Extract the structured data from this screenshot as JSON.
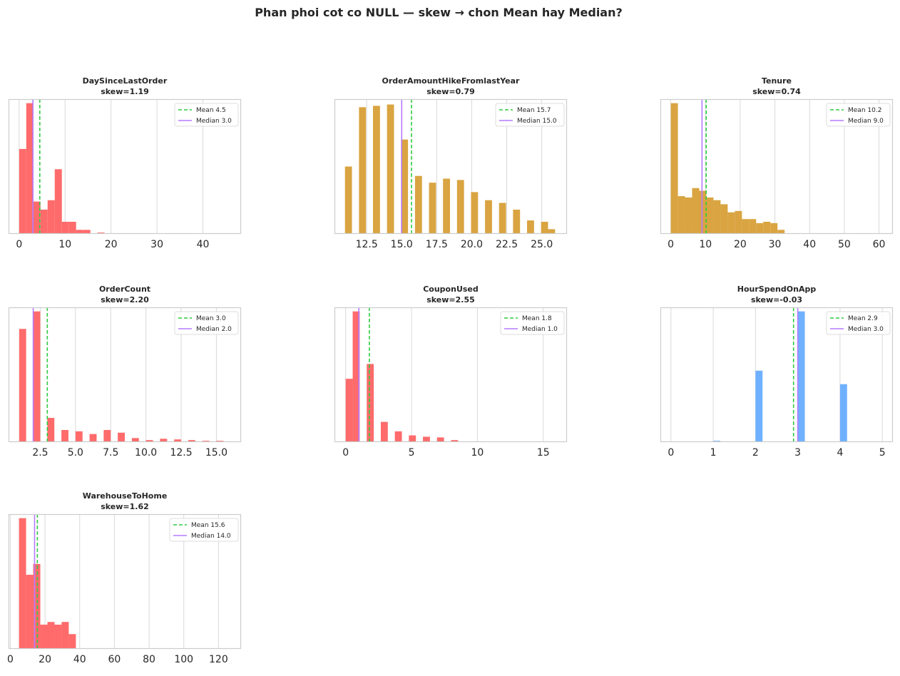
{
  "figure_title": "Phan phoi cot co NULL — skew → chon Mean hay Median?",
  "colors": {
    "red": "#ff6b6b",
    "gold": "#d9a441",
    "blue": "#6fb1ff",
    "mean": "#2ecc40",
    "median": "#b57bff",
    "grid": "#d9d9d9",
    "spine": "#cccccc"
  },
  "chart_data": [
    {
      "type": "histogram",
      "name": "DaySinceLastOrder",
      "title": "DaySinceLastOrder",
      "skew_label": "skew=1.19",
      "color": "red",
      "xlim": [
        -2.3,
        48.3
      ],
      "ymax": 1,
      "xticks": [
        0,
        10,
        20,
        30,
        40
      ],
      "xtick_labels": [
        "0",
        "10",
        "20",
        "30",
        "40"
      ],
      "bin_start": 0,
      "bin_width": 1.55,
      "heights": [
        0.63,
        0.97,
        0.24,
        0.18,
        0.25,
        0.48,
        0.09,
        0.09,
        0.03,
        0.03,
        0.005,
        0.01,
        0.003
      ],
      "mean": 4.5,
      "median": 3.0,
      "mean_label": "Mean 4.5",
      "median_label": "Median 3.0"
    },
    {
      "type": "histogram",
      "name": "OrderAmountHikeFromlastYear",
      "title": "OrderAmountHikeFromlastYear",
      "skew_label": "skew=0.79",
      "color": "gold",
      "xlim": [
        10.2,
        26.8
      ],
      "ymax": 1,
      "xticks": [
        12.5,
        15.0,
        17.5,
        20.0,
        22.5,
        25.0
      ],
      "xtick_labels": [
        "12.5",
        "15.0",
        "17.5",
        "20.0",
        "22.5",
        "25.0"
      ],
      "bin_start": 10.95,
      "bin_width": 0.5,
      "heights": [
        0.5,
        0,
        0.94,
        0,
        0.95,
        0,
        0.96,
        0,
        0.7,
        0,
        0.43,
        0,
        0.38,
        0,
        0.41,
        0,
        0.4,
        0,
        0.31,
        0,
        0.25,
        0,
        0.23,
        0,
        0.18,
        0,
        0.1,
        0,
        0.09,
        0.035
      ],
      "mean": 15.7,
      "median": 15.0,
      "mean_label": "Mean 15.7",
      "median_label": "Median 15.0"
    },
    {
      "type": "histogram",
      "name": "Tenure",
      "title": "Tenure",
      "skew_label": "skew=0.74",
      "color": "gold",
      "xlim": [
        -3,
        64
      ],
      "ymax": 1,
      "xticks": [
        0,
        10,
        20,
        30,
        40,
        50,
        60
      ],
      "xtick_labels": [
        "0",
        "10",
        "20",
        "30",
        "40",
        "50",
        "60"
      ],
      "bin_start": 0,
      "bin_width": 2.05,
      "heights": [
        0.97,
        0.28,
        0.27,
        0.34,
        0.32,
        0.27,
        0.25,
        0.22,
        0.16,
        0.17,
        0.11,
        0.11,
        0.08,
        0.09,
        0.08,
        0.03,
        0,
        0,
        0,
        0,
        0,
        0,
        0,
        0,
        0.005,
        0,
        0,
        0,
        0,
        0.005
      ],
      "mean": 10.2,
      "median": 9.0,
      "mean_label": "Mean 10.2",
      "median_label": "Median 9.0"
    },
    {
      "type": "histogram",
      "name": "OrderCount",
      "title": "OrderCount",
      "skew_label": "skew=2.20",
      "color": "red",
      "xlim": [
        0.25,
        16.75
      ],
      "ymax": 1,
      "xticks": [
        2.5,
        5.0,
        7.5,
        10.0,
        12.5,
        15.0
      ],
      "xtick_labels": [
        "2.5",
        "5.0",
        "7.5",
        "10.0",
        "12.5",
        "15.0"
      ],
      "bin_start": 1,
      "bin_width": 0.5,
      "heights": [
        0.84,
        0,
        0.97,
        0,
        0.18,
        0,
        0.09,
        0,
        0.08,
        0,
        0.06,
        0,
        0.09,
        0,
        0.07,
        0,
        0.03,
        0,
        0.015,
        0,
        0.025,
        0,
        0.02,
        0,
        0.015,
        0,
        0.01,
        0,
        0.01,
        0.005
      ],
      "mean": 3.0,
      "median": 2.0,
      "mean_label": "Mean 3.0",
      "median_label": "Median 2.0"
    },
    {
      "type": "histogram",
      "name": "CouponUsed",
      "title": "CouponUsed",
      "skew_label": "skew=2.55",
      "color": "red",
      "xlim": [
        -0.85,
        16.8
      ],
      "ymax": 1,
      "xticks": [
        0,
        5,
        10,
        15
      ],
      "xtick_labels": [
        "0",
        "5",
        "10",
        "15"
      ],
      "bin_start": 0,
      "bin_width": 0.5333,
      "heights": [
        0.47,
        0.97,
        0,
        0.58,
        0,
        0.15,
        0,
        0.08,
        0,
        0.05,
        0,
        0.04,
        0,
        0.035,
        0,
        0.015,
        0,
        0.005,
        0,
        0.003,
        0,
        0.003,
        0,
        0.002,
        0,
        0.002,
        0,
        0.001,
        0,
        0.001
      ],
      "mean": 1.8,
      "median": 1.0,
      "mean_label": "Mean 1.8",
      "median_label": "Median 1.0"
    },
    {
      "type": "histogram",
      "name": "HourSpendOnApp",
      "title": "HourSpendOnApp",
      "skew_label": "skew=-0.03",
      "color": "blue",
      "xlim": [
        -0.25,
        5.25
      ],
      "ymax": 1,
      "xticks": [
        0,
        1,
        2,
        3,
        4,
        5
      ],
      "xtick_labels": [
        "0",
        "1",
        "2",
        "3",
        "4",
        "5"
      ],
      "bin_start": 0,
      "bin_width": 0.16667,
      "heights": [
        0,
        0,
        0,
        0,
        0,
        0,
        0.01,
        0,
        0,
        0,
        0,
        0,
        0.53,
        0,
        0,
        0,
        0,
        0,
        0.97,
        0,
        0,
        0,
        0,
        0,
        0.43,
        0,
        0,
        0,
        0,
        0
      ],
      "mean": 2.9,
      "median": 3.0,
      "mean_label": "Mean 2.9",
      "median_label": "Median 3.0"
    },
    {
      "type": "histogram",
      "name": "WarehouseToHome",
      "title": "WarehouseToHome",
      "skew_label": "skew=1.62",
      "color": "red",
      "xlim": [
        -1,
        133
      ],
      "ymax": 1,
      "xticks": [
        0,
        20,
        40,
        60,
        80,
        100,
        120
      ],
      "xtick_labels": [
        "0",
        "20",
        "40",
        "60",
        "80",
        "100",
        "120"
      ],
      "bin_start": 5,
      "bin_width": 4.1,
      "heights": [
        0.97,
        0.55,
        0.63,
        0.18,
        0.2,
        0.18,
        0.2,
        0.11
      ],
      "mean": 15.6,
      "median": 14.0,
      "mean_label": "Mean 15.6",
      "median_label": "Median 14.0"
    }
  ]
}
